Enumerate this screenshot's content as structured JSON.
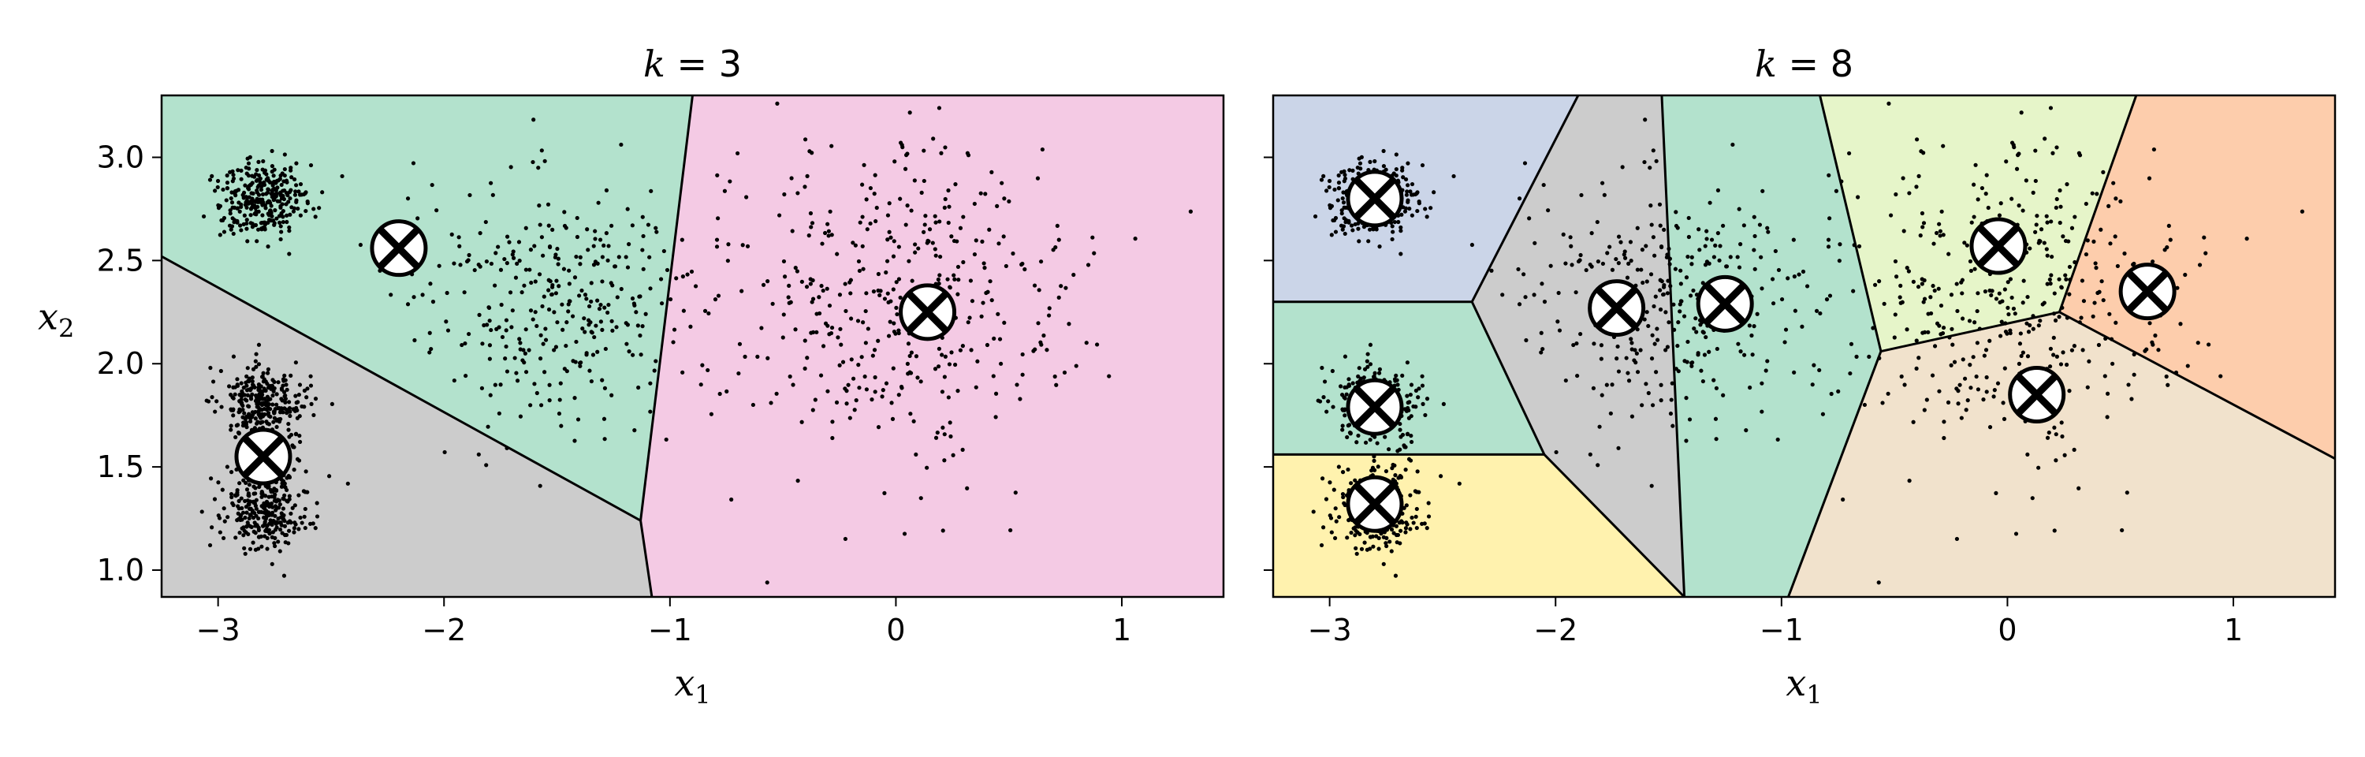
{
  "chart_data": [
    {
      "type": "scatter",
      "title_var": "k",
      "title_eq": " = ",
      "title_val": "3",
      "xlabel": "x",
      "xlabel_sub": "1",
      "ylabel": "x",
      "ylabel_sub": "2",
      "xlim": [
        -3.25,
        1.45
      ],
      "ylim": [
        0.87,
        3.3
      ],
      "xticks": [
        -3,
        -2,
        -1,
        0,
        1
      ],
      "xtick_labels": [
        "−3",
        "−2",
        "−1",
        "0",
        "1"
      ],
      "yticks": [
        1.0,
        1.5,
        2.0,
        2.5,
        3.0
      ],
      "ytick_labels": [
        "1.0",
        "1.5",
        "2.0",
        "2.5",
        "3.0"
      ],
      "regions": [
        {
          "color": "#b3e2cd",
          "polygon": [
            [
              -3.25,
              2.52
            ],
            [
              -3.25,
              3.3
            ],
            [
              -0.9,
              3.3
            ],
            [
              -1.13,
              1.24
            ]
          ]
        },
        {
          "color": "#cccccc",
          "polygon": [
            [
              -3.25,
              0.87
            ],
            [
              -3.25,
              2.52
            ],
            [
              -1.13,
              1.24
            ],
            [
              -1.08,
              0.87
            ]
          ]
        },
        {
          "color": "#f4cae4",
          "polygon": [
            [
              -0.9,
              3.3
            ],
            [
              1.45,
              3.3
            ],
            [
              1.45,
              0.87
            ],
            [
              -1.08,
              0.87
            ],
            [
              -1.13,
              1.24
            ]
          ]
        }
      ],
      "boundaries": [
        [
          [
            -3.25,
            2.52
          ],
          [
            -1.13,
            1.24
          ]
        ],
        [
          [
            -0.9,
            3.3
          ],
          [
            -1.13,
            1.24
          ]
        ],
        [
          [
            -1.13,
            1.24
          ],
          [
            -1.08,
            0.87
          ]
        ]
      ],
      "clusters": [
        {
          "cx": -2.8,
          "cy": 2.8,
          "sx": 0.1,
          "sy": 0.1,
          "n": 300
        },
        {
          "cx": -2.8,
          "cy": 1.8,
          "sx": 0.1,
          "sy": 0.1,
          "n": 300
        },
        {
          "cx": -2.8,
          "cy": 1.3,
          "sx": 0.1,
          "sy": 0.1,
          "n": 300
        },
        {
          "cx": -1.5,
          "cy": 2.3,
          "sx": 0.3,
          "sy": 0.3,
          "n": 330
        },
        {
          "cx": 0.0,
          "cy": 2.3,
          "sx": 0.4,
          "sy": 0.4,
          "n": 420
        }
      ],
      "centroids": [
        {
          "x": -2.2,
          "y": 2.56
        },
        {
          "x": -2.8,
          "y": 1.55
        },
        {
          "x": 0.14,
          "y": 2.25
        }
      ]
    },
    {
      "type": "scatter",
      "title_var": "k",
      "title_eq": " = ",
      "title_val": "8",
      "xlabel": "x",
      "xlabel_sub": "1",
      "xlim": [
        -3.25,
        1.45
      ],
      "ylim": [
        0.87,
        3.3
      ],
      "xticks": [
        -3,
        -2,
        -1,
        0,
        1
      ],
      "xtick_labels": [
        "−3",
        "−2",
        "−1",
        "0",
        "1"
      ],
      "yticks": [
        1.0,
        1.5,
        2.0,
        2.5,
        3.0
      ],
      "regions": [
        {
          "color": "#cbd5e8",
          "polygon": [
            [
              -3.25,
              3.3
            ],
            [
              -1.9,
              3.3
            ],
            [
              -2.37,
              2.3
            ],
            [
              -3.25,
              2.3
            ]
          ]
        },
        {
          "color": "#b3e2cd",
          "polygon": [
            [
              -3.25,
              2.3
            ],
            [
              -2.37,
              2.3
            ],
            [
              -2.05,
              1.56
            ],
            [
              -3.25,
              1.56
            ]
          ]
        },
        {
          "color": "#fff2ae",
          "polygon": [
            [
              -3.25,
              1.56
            ],
            [
              -2.05,
              1.56
            ],
            [
              -1.43,
              0.87
            ],
            [
              -3.25,
              0.87
            ]
          ]
        },
        {
          "color": "#cccccc",
          "polygon": [
            [
              -1.9,
              3.3
            ],
            [
              -1.53,
              3.3
            ],
            [
              -1.43,
              0.87
            ],
            [
              -2.05,
              1.56
            ],
            [
              -2.37,
              2.3
            ]
          ]
        },
        {
          "color": "#b3e2cd",
          "polygon": [
            [
              -1.53,
              3.3
            ],
            [
              -0.83,
              3.3
            ],
            [
              -0.56,
              2.06
            ],
            [
              -0.97,
              0.87
            ],
            [
              -1.43,
              0.87
            ]
          ]
        },
        {
          "color": "#e6f5c9",
          "polygon": [
            [
              -0.83,
              3.3
            ],
            [
              0.57,
              3.3
            ],
            [
              0.23,
              2.25
            ],
            [
              -0.56,
              2.06
            ]
          ]
        },
        {
          "color": "#fdcdac",
          "polygon": [
            [
              0.57,
              3.3
            ],
            [
              1.45,
              3.3
            ],
            [
              1.45,
              1.54
            ],
            [
              0.23,
              2.25
            ]
          ]
        },
        {
          "color": "#f1e2cc",
          "polygon": [
            [
              -0.56,
              2.06
            ],
            [
              0.23,
              2.25
            ],
            [
              1.45,
              1.54
            ],
            [
              1.45,
              0.87
            ],
            [
              -0.97,
              0.87
            ]
          ]
        }
      ],
      "boundaries": [
        [
          [
            -1.9,
            3.3
          ],
          [
            -2.37,
            2.3
          ]
        ],
        [
          [
            -3.25,
            2.3
          ],
          [
            -2.37,
            2.3
          ]
        ],
        [
          [
            -2.37,
            2.3
          ],
          [
            -2.05,
            1.56
          ]
        ],
        [
          [
            -3.25,
            1.56
          ],
          [
            -2.05,
            1.56
          ]
        ],
        [
          [
            -2.05,
            1.56
          ],
          [
            -1.43,
            0.87
          ]
        ],
        [
          [
            -1.53,
            3.3
          ],
          [
            -1.43,
            0.87
          ]
        ],
        [
          [
            -0.83,
            3.3
          ],
          [
            -0.56,
            2.06
          ]
        ],
        [
          [
            -0.56,
            2.06
          ],
          [
            -0.97,
            0.87
          ]
        ],
        [
          [
            -0.56,
            2.06
          ],
          [
            0.23,
            2.25
          ]
        ],
        [
          [
            0.23,
            2.25
          ],
          [
            0.57,
            3.3
          ]
        ],
        [
          [
            0.23,
            2.25
          ],
          [
            1.45,
            1.54
          ]
        ]
      ],
      "clusters": [
        {
          "cx": -2.8,
          "cy": 2.8,
          "sx": 0.1,
          "sy": 0.1,
          "n": 300
        },
        {
          "cx": -2.8,
          "cy": 1.8,
          "sx": 0.1,
          "sy": 0.1,
          "n": 300
        },
        {
          "cx": -2.8,
          "cy": 1.3,
          "sx": 0.1,
          "sy": 0.1,
          "n": 300
        },
        {
          "cx": -1.5,
          "cy": 2.3,
          "sx": 0.3,
          "sy": 0.3,
          "n": 330
        },
        {
          "cx": 0.0,
          "cy": 2.3,
          "sx": 0.4,
          "sy": 0.4,
          "n": 420
        }
      ],
      "centroids": [
        {
          "x": -2.8,
          "y": 2.8
        },
        {
          "x": -2.8,
          "y": 1.79
        },
        {
          "x": -2.8,
          "y": 1.32
        },
        {
          "x": -1.73,
          "y": 2.27
        },
        {
          "x": -1.25,
          "y": 2.29
        },
        {
          "x": -0.04,
          "y": 2.57
        },
        {
          "x": 0.62,
          "y": 2.35
        },
        {
          "x": 0.13,
          "y": 1.85
        }
      ]
    }
  ]
}
